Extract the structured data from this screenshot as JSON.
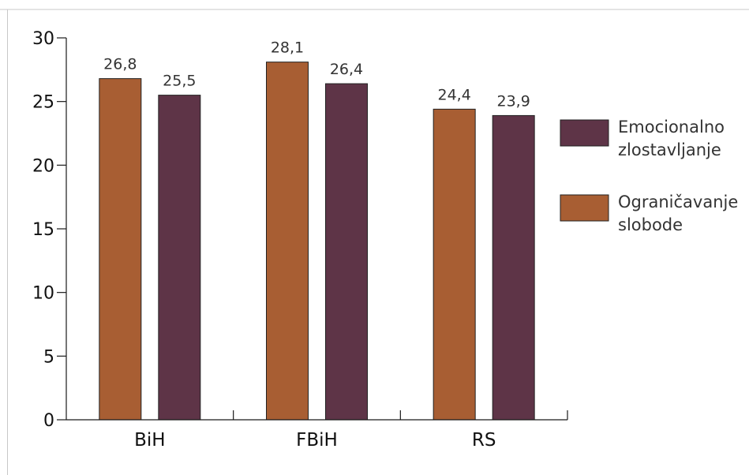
{
  "chart_data": {
    "type": "bar",
    "categories": [
      "BiH",
      "FBiH",
      "RS"
    ],
    "series": [
      {
        "name": "Ograničavanje slobode",
        "legend_lines": [
          "Ograničavanje",
          "slobode"
        ],
        "color": "#a85e33",
        "values": [
          26.8,
          28.1,
          24.4
        ],
        "labels": [
          "26,8",
          "28,1",
          "24,4"
        ]
      },
      {
        "name": "Emocionalno zlostavljanje",
        "legend_lines": [
          "Emocionalno",
          "zlostavljanje"
        ],
        "color": "#5e3447",
        "values": [
          25.5,
          26.4,
          23.9
        ],
        "labels": [
          "25,5",
          "26,4",
          "23,9"
        ]
      }
    ],
    "yticks": [
      0,
      5,
      10,
      15,
      20,
      25,
      30
    ],
    "ylim": [
      0,
      30
    ],
    "title": "",
    "xlabel": "",
    "ylabel": "",
    "grid": false,
    "legend": "right",
    "legend_order": [
      1,
      0
    ]
  }
}
